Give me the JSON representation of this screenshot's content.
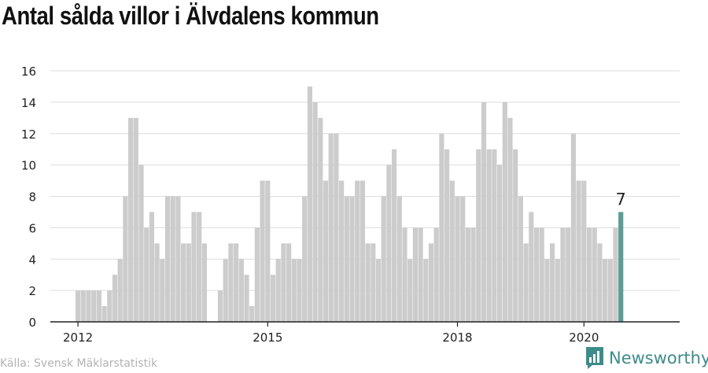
{
  "title": "Antal sålda villor i Älvdalens kommun",
  "source": "Källa: Svensk Mäklarstatistik",
  "brand": {
    "name": "Newsworthy",
    "logo_icon": "newsworthy-logo-icon",
    "color": "#3e8c8a"
  },
  "colors": {
    "bar": "#cccccc",
    "highlight": "#5a9e93",
    "grid": "#dddddd"
  },
  "chart_data": {
    "type": "bar",
    "title": "Antal sålda villor i Älvdalens kommun",
    "xlabel": "",
    "ylabel": "",
    "ylim": [
      0,
      16
    ],
    "yticks": [
      0,
      2,
      4,
      6,
      8,
      10,
      12,
      14,
      16
    ],
    "x_ticks": [
      {
        "label": "2012",
        "month_index": 0
      },
      {
        "label": "2015",
        "month_index": 36
      },
      {
        "label": "2018",
        "month_index": 72
      },
      {
        "label": "2020",
        "month_index": 96
      }
    ],
    "start": "2012-01",
    "grid": true,
    "values": [
      2,
      2,
      2,
      2,
      2,
      1,
      2,
      3,
      4,
      8,
      13,
      13,
      10,
      6,
      7,
      5,
      4,
      8,
      8,
      8,
      5,
      5,
      7,
      7,
      5,
      0,
      0,
      2,
      4,
      5,
      5,
      4,
      3,
      1,
      6,
      9,
      9,
      3,
      4,
      5,
      5,
      4,
      4,
      8,
      15,
      14,
      13,
      9,
      12,
      12,
      9,
      8,
      8,
      9,
      9,
      5,
      5,
      4,
      8,
      10,
      11,
      8,
      6,
      4,
      6,
      6,
      4,
      5,
      6,
      12,
      11,
      9,
      8,
      8,
      6,
      6,
      11,
      14,
      11,
      11,
      10,
      14,
      13,
      11,
      8,
      5,
      7,
      6,
      6,
      4,
      5,
      4,
      6,
      6,
      12,
      9,
      9,
      6,
      6,
      5,
      4,
      4,
      6,
      7
    ],
    "highlight_last": true,
    "highlight_label": "7"
  }
}
